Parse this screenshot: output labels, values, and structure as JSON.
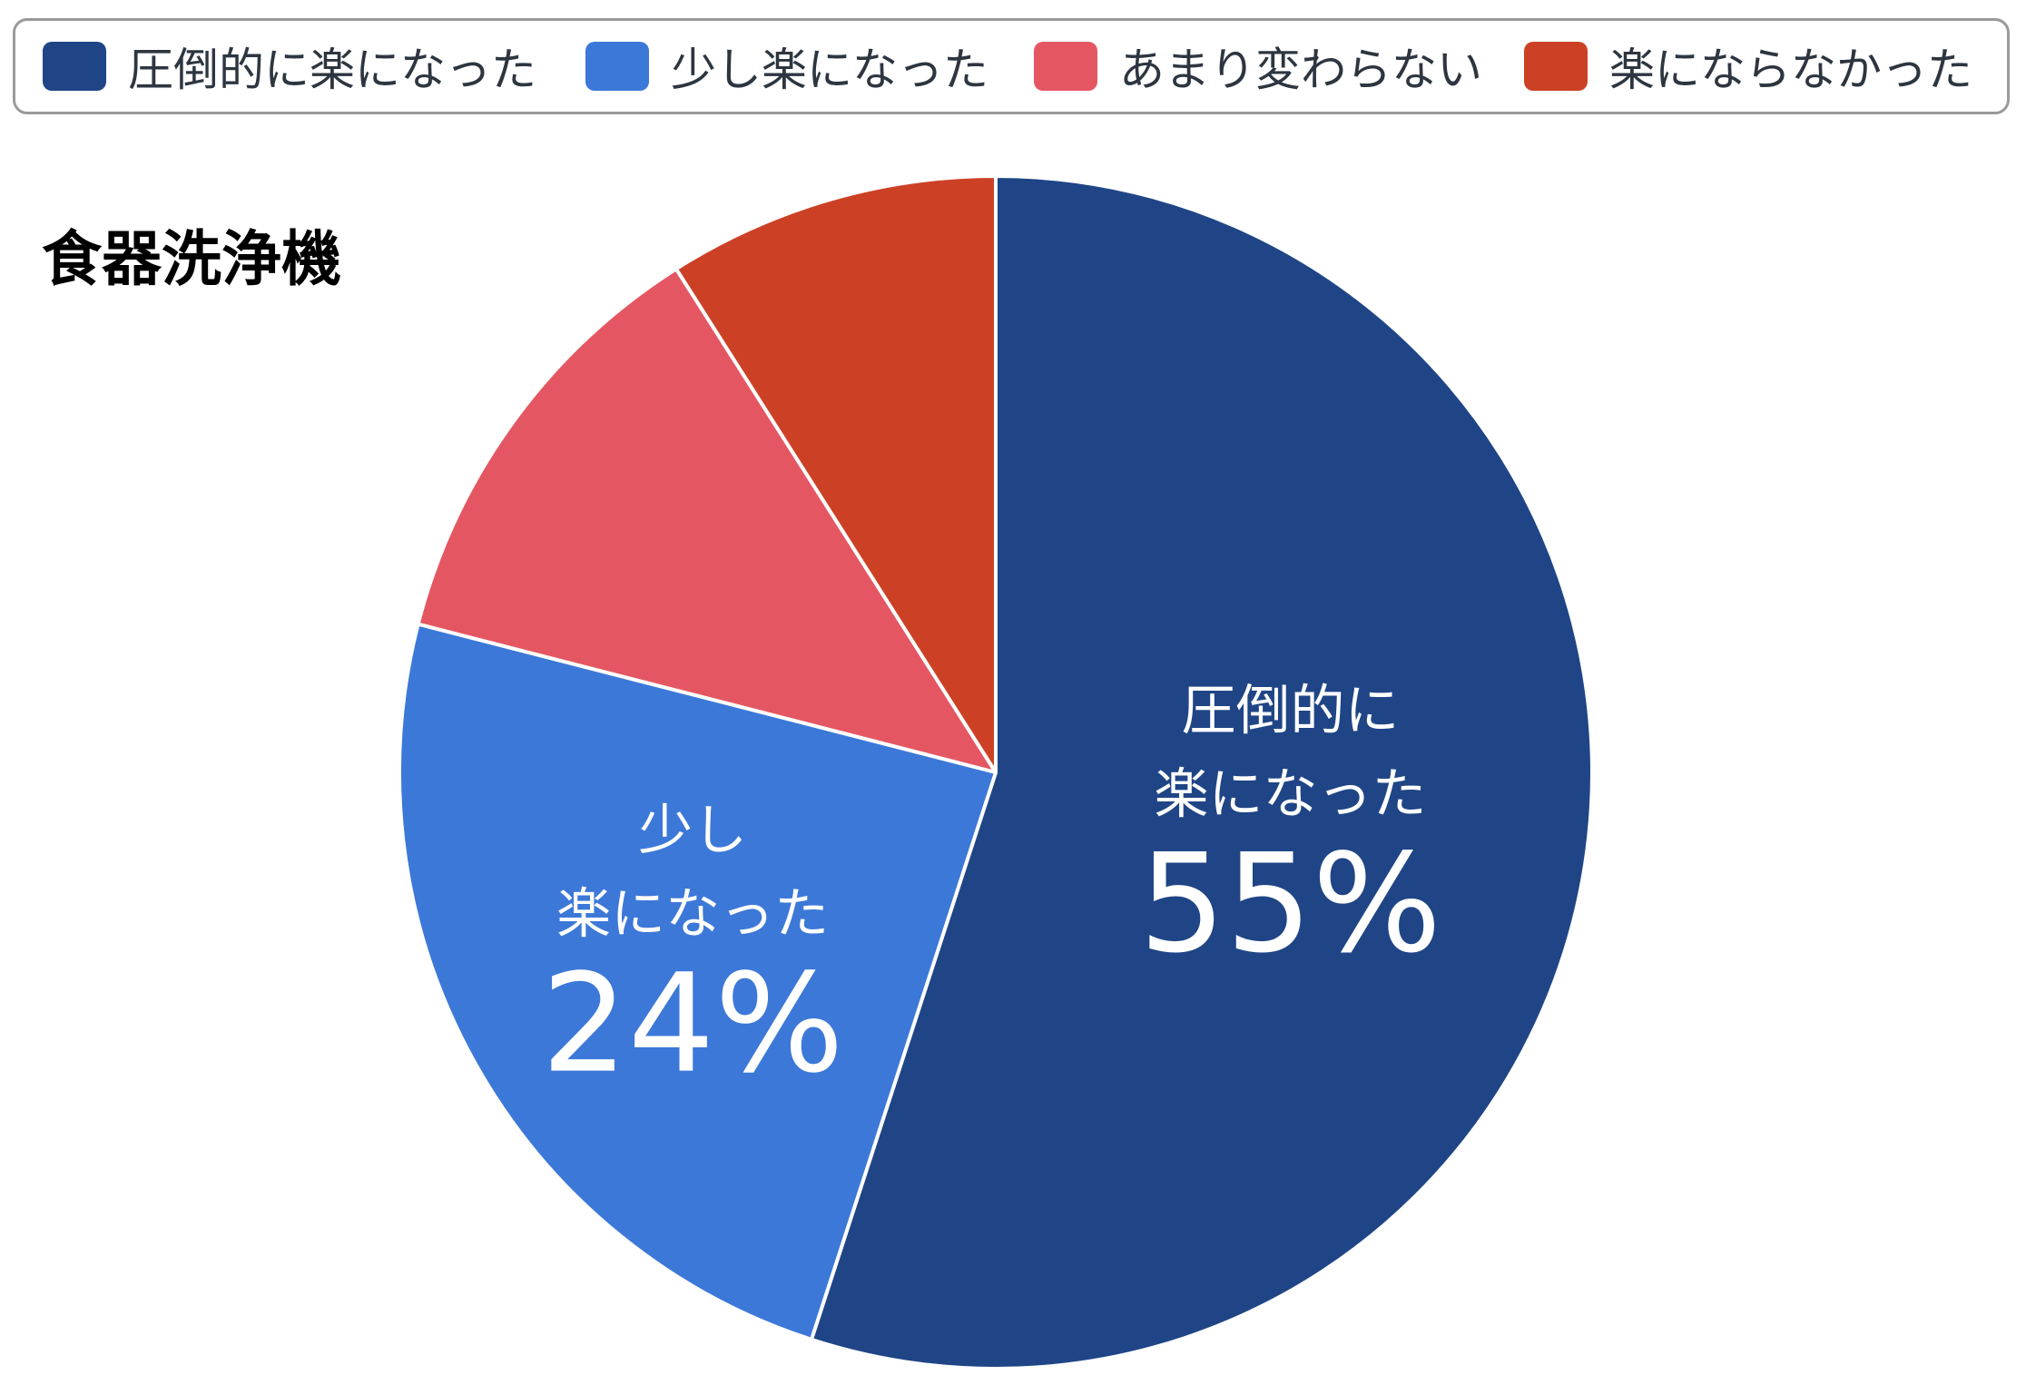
{
  "chart_data": {
    "type": "pie",
    "title": "食器洗浄機",
    "legend_position": "top",
    "slices": [
      {
        "label": "圧倒的に楽になった",
        "value": 55,
        "color": "#1f4586",
        "data_label_lines": [
          "圧倒的に",
          "楽になった"
        ],
        "data_label_value": "55%"
      },
      {
        "label": "少し楽になった",
        "value": 24,
        "color": "#3c78d8",
        "data_label_lines": [
          "少し",
          "楽になった"
        ],
        "data_label_value": "24%"
      },
      {
        "label": "あまり変わらない",
        "value": 12,
        "color": "#e45762",
        "data_label_lines": [],
        "data_label_value": ""
      },
      {
        "label": "楽にならなかった",
        "value": 9,
        "color": "#cc4125",
        "data_label_lines": [],
        "data_label_value": ""
      }
    ]
  }
}
